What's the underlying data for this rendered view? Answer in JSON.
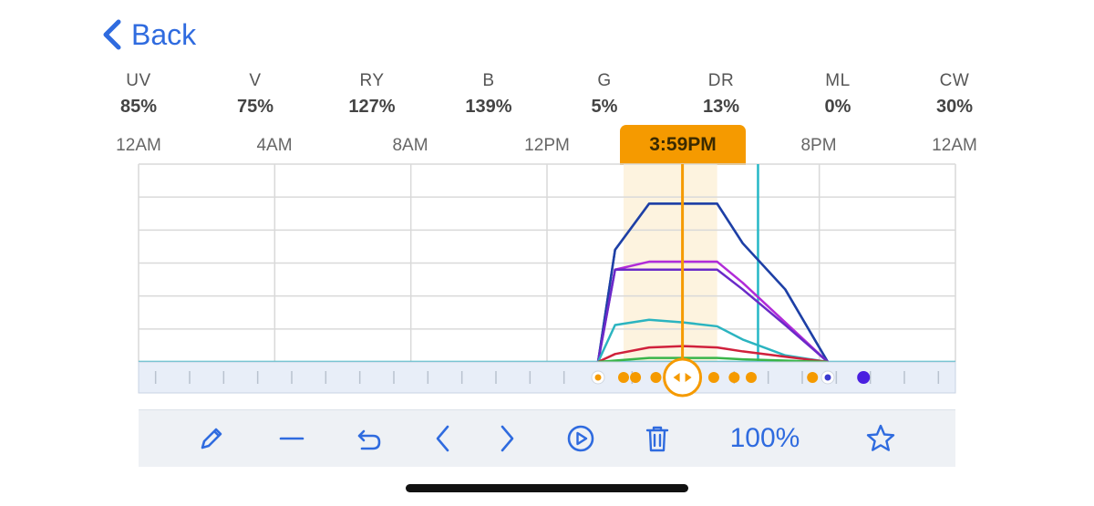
{
  "nav": {
    "back_label": "Back"
  },
  "channels": [
    {
      "name": "UV",
      "value": "85%"
    },
    {
      "name": "V",
      "value": "75%"
    },
    {
      "name": "RY",
      "value": "127%"
    },
    {
      "name": "B",
      "value": "139%"
    },
    {
      "name": "G",
      "value": "5%"
    },
    {
      "name": "DR",
      "value": "13%"
    },
    {
      "name": "ML",
      "value": "0%"
    },
    {
      "name": "CW",
      "value": "30%"
    }
  ],
  "timeline": {
    "labels": [
      "12AM",
      "4AM",
      "8AM",
      "12PM",
      "8PM",
      "12AM"
    ],
    "current_time": "3:59PM"
  },
  "toolbar": {
    "zoom_label": "100%"
  },
  "colors": {
    "accent": "#2f6bdf",
    "highlight": "#f59a00",
    "highlight_band": "#fdf3df",
    "now_line": "#25b8c7",
    "grid": "#d9d9d9",
    "track_bg": "#e8eef8"
  },
  "icons": [
    "chevron-left-icon",
    "pencil-icon",
    "minus-icon",
    "undo-icon",
    "chevron-left-icon",
    "chevron-right-icon",
    "play-icon",
    "trash-icon",
    "star-icon"
  ],
  "chart_data": {
    "type": "line",
    "x": [
      13.5,
      14.0,
      15.0,
      16.0,
      17.0,
      17.75,
      19.0,
      20.25
    ],
    "xlim": [
      0,
      24
    ],
    "ylim": [
      0,
      150
    ],
    "current_time_hours": 15.98,
    "now_line_hours": 18.2,
    "highlight_range_hours": [
      14.25,
      17.0
    ],
    "series": [
      {
        "color": "#2a6ab0",
        "values": [
          0,
          85,
          120,
          120,
          120,
          90,
          55,
          0
        ]
      },
      {
        "color": "#1f3fa6",
        "values": [
          0,
          85,
          120,
          120,
          120,
          90,
          55,
          0
        ]
      },
      {
        "color": "#b12bd8",
        "values": [
          0,
          70,
          76,
          76,
          76,
          60,
          30,
          0
        ]
      },
      {
        "color": "#6a2ac8",
        "values": [
          0,
          70,
          70,
          70,
          70,
          55,
          28,
          0
        ]
      },
      {
        "color": "#2bb4c0",
        "values": [
          0,
          28,
          32,
          30,
          27,
          17,
          5,
          0
        ]
      },
      {
        "color": "#d0213c",
        "values": [
          0,
          6,
          11,
          12,
          11,
          8,
          4,
          0
        ]
      },
      {
        "color": "#39b54a",
        "values": [
          0,
          1,
          3,
          3,
          3,
          2,
          1,
          0
        ]
      }
    ],
    "markers_hours": [
      14.6,
      15.2,
      15.7,
      16.9,
      17.5,
      18.0,
      19.8
    ],
    "start_marker_hours": 13.5,
    "end_marker_hours": 20.25,
    "extra_marker_hours": 21.3
  }
}
